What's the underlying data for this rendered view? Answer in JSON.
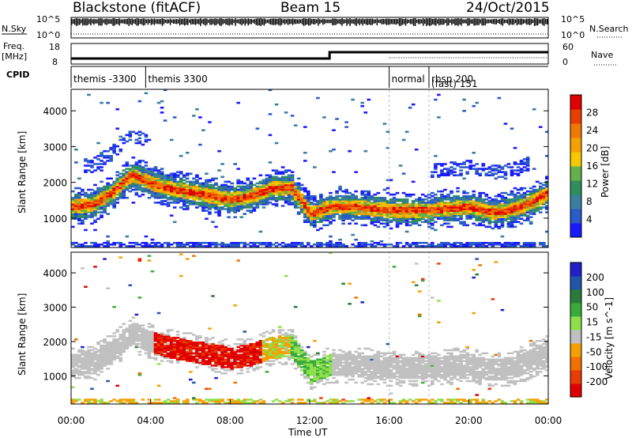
{
  "header": {
    "station": "Blackstone (fitACF)",
    "beam": "Beam 15",
    "date": "24/Oct/2015"
  },
  "labels": {
    "nsky": "N.Sky",
    "nsearch": "N.Search",
    "freq": "Freq.",
    "mhz": "[MHz]",
    "nave": "Nave",
    "cpid": "CPID",
    "nsky_top": "10^5",
    "nsky_bottom": "10^0",
    "nsearch_top": "10^5",
    "nsearch_bottom": "10^0",
    "freq_top": "18",
    "freq_bottom": "8",
    "nave_top": "60",
    "nave_bottom": "0"
  },
  "colors": {
    "power": [
      "#1a1aff",
      "#2a5bc8",
      "#3a7fa0",
      "#2f8f5a",
      "#64b04a",
      "#f5c800",
      "#f5a000",
      "#f07800",
      "#e83c00",
      "#e00000"
    ],
    "velocity": [
      "#2020c8",
      "#2255a8",
      "#2a7a3a",
      "#3aaa3a",
      "#8ee04a",
      "#c0c0c0",
      "#f5a000",
      "#f07000",
      "#e83c00",
      "#e00000"
    ],
    "grey": "#c0c0c0"
  },
  "chart_data": [
    {
      "type": "table",
      "name": "cpid",
      "rows": [
        {
          "label": "themis -3300",
          "start": "00:00",
          "end": "03:45"
        },
        {
          "label": "themis 3300",
          "start": "03:45",
          "end": "16:00"
        },
        {
          "label": "normal",
          "start": "16:00",
          "end": "18:00"
        },
        {
          "label": "rbsp 200",
          "label2": "(fast) 151",
          "start": "18:00",
          "end": "24:00"
        }
      ]
    },
    {
      "type": "heatmap",
      "title": "",
      "ylabel": "Slant Range [km]",
      "xlabel": "Time UT",
      "colorbar_label": "Power [dB]",
      "colorbar_ticks": [
        "4",
        "8",
        "12",
        "16",
        "20",
        "24",
        "28"
      ],
      "ylim": [
        180,
        4600
      ],
      "yticks": [
        "1000",
        "2000",
        "3000",
        "4000"
      ],
      "xticks": [
        "00:00",
        "04:00",
        "08:00",
        "12:00",
        "16:00",
        "20:00",
        "00:00"
      ],
      "band_center_km": [
        [
          0,
          1300
        ],
        [
          1,
          1350
        ],
        [
          2,
          1700
        ],
        [
          3,
          2200
        ],
        [
          4,
          1950
        ],
        [
          5,
          1800
        ],
        [
          6,
          1700
        ],
        [
          7,
          1600
        ],
        [
          8,
          1500
        ],
        [
          9,
          1600
        ],
        [
          10,
          1800
        ],
        [
          11,
          1850
        ],
        [
          12,
          1100
        ],
        [
          13,
          1300
        ],
        [
          14,
          1300
        ],
        [
          15,
          1250
        ],
        [
          16,
          1200
        ],
        [
          17,
          1200
        ],
        [
          18,
          1200
        ],
        [
          19,
          1250
        ],
        [
          20,
          1300
        ],
        [
          21,
          1150
        ],
        [
          22,
          1200
        ],
        [
          23,
          1400
        ],
        [
          24,
          1700
        ]
      ]
    },
    {
      "type": "heatmap",
      "title": "",
      "ylabel": "Slant Range [km]",
      "xlabel": "Time UT",
      "colorbar_label": "Velocity [m s^-1]",
      "colorbar_ticks": [
        "200",
        "100",
        "50",
        "15",
        "-15",
        "-50",
        "-100",
        "-200"
      ],
      "ylim": [
        180,
        4600
      ],
      "yticks": [
        "1000",
        "2000",
        "3000",
        "4000"
      ],
      "xticks": [
        "00:00",
        "04:00",
        "08:00",
        "12:00",
        "16:00",
        "20:00",
        "00:00"
      ]
    }
  ]
}
